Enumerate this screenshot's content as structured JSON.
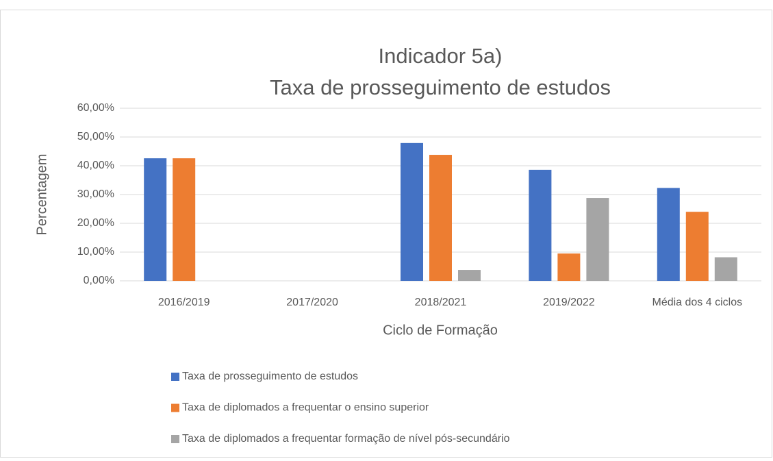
{
  "chart_data": {
    "type": "bar",
    "title": [
      "Indicador 5a)",
      "Taxa de prosseguimento de estudos"
    ],
    "x_label": "Ciclo de Formação",
    "y_label": "Percentagem",
    "categories": [
      "2016/2019",
      "2017/2020",
      "2018/2021",
      "2019/2022",
      "Média dos 4 ciclos"
    ],
    "series": [
      {
        "name": "Taxa de prosseguimento de estudos",
        "color": "#4472c4",
        "values": [
          42.6,
          0,
          47.9,
          38.6,
          32.3
        ]
      },
      {
        "name": "Taxa de diplomados a frequentar o ensino superior",
        "color": "#ed7d31",
        "values": [
          42.6,
          0,
          43.8,
          9.5,
          24.0
        ]
      },
      {
        "name": "Taxa de diplomados a frequentar formação de nível pós-secundário",
        "color": "#a5a5a5",
        "values": [
          0,
          0,
          3.8,
          28.8,
          8.2
        ]
      }
    ],
    "ylim": [
      0,
      60
    ],
    "yticks": [
      {
        "value": 0,
        "label": "0,00%"
      },
      {
        "value": 10,
        "label": "10,00%"
      },
      {
        "value": 20,
        "label": "20,00%"
      },
      {
        "value": 30,
        "label": "30,00%"
      },
      {
        "value": 40,
        "label": "40,00%"
      },
      {
        "value": 50,
        "label": "50,00%"
      },
      {
        "value": 60,
        "label": "60,00%"
      }
    ],
    "grid": true,
    "legend": "bottom"
  }
}
